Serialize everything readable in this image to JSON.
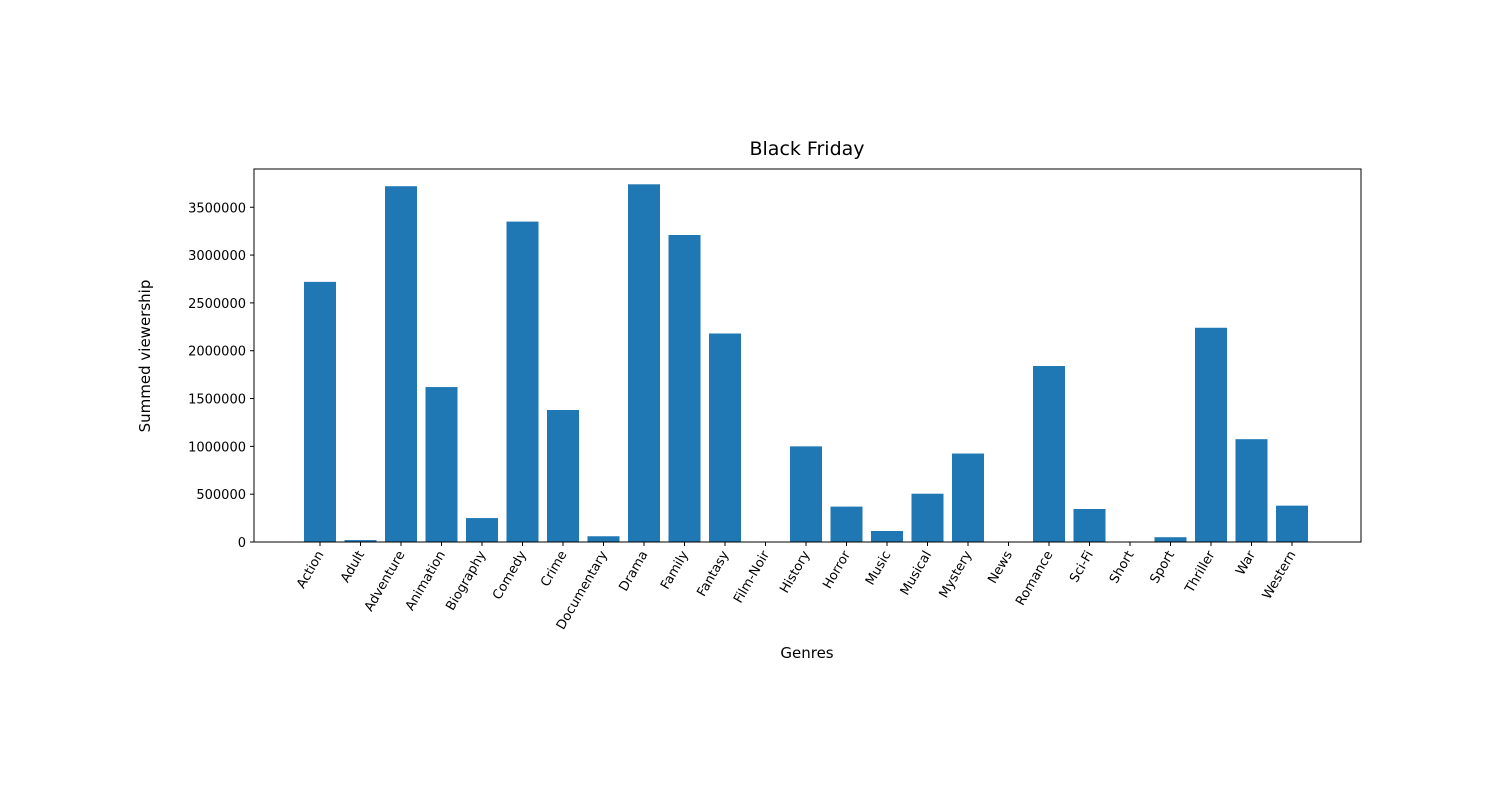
{
  "chart_data": {
    "type": "bar",
    "title": "Black Friday",
    "xlabel": "Genres",
    "ylabel": "Summed viewership",
    "ylim": [
      0,
      3900000
    ],
    "yticks": [
      0,
      500000,
      1000000,
      1500000,
      2000000,
      2500000,
      3000000,
      3500000
    ],
    "bar_color": "#1f77b4",
    "categories": [
      "Action",
      "Adult",
      "Adventure",
      "Animation",
      "Biography",
      "Comedy",
      "Crime",
      "Documentary",
      "Drama",
      "Family",
      "Fantasy",
      "Film-Noir",
      "History",
      "Horror",
      "Music",
      "Musical",
      "Mystery",
      "News",
      "Romance",
      "Sci-Fi",
      "Short",
      "Sport",
      "Thriller",
      "War",
      "Western"
    ],
    "values": [
      2720000,
      20000,
      3720000,
      1620000,
      250000,
      3350000,
      1380000,
      60000,
      3740000,
      3210000,
      2180000,
      0,
      1000000,
      370000,
      115000,
      505000,
      925000,
      0,
      1840000,
      345000,
      0,
      50000,
      2240000,
      1075000,
      380000
    ]
  }
}
